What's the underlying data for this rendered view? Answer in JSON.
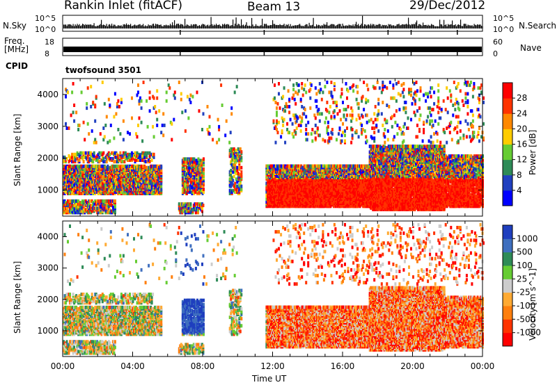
{
  "header": {
    "station": "Rankin Inlet (fitACF)",
    "beam": "Beam 13",
    "date": "29/Dec/2012"
  },
  "top_panel": {
    "nsky_label": "N.Sky",
    "nsearch_label": "N.Search",
    "left_ticks": [
      "10^5",
      "10^0"
    ],
    "right_ticks": [
      "10^5",
      "10^0"
    ]
  },
  "freq_panel": {
    "freq_label": "Freq.",
    "freq_unit": "[MHz]",
    "nave_label": "Nave",
    "left_ticks": [
      "18",
      "8"
    ],
    "right_ticks": [
      "60",
      "0"
    ]
  },
  "cpid": {
    "label": "CPID",
    "value": "twofsound 3501"
  },
  "chart_data": [
    {
      "type": "heatmap",
      "name": "power",
      "xlabel": "Time UT",
      "ylabel": "Slant Range [km]",
      "y_ticks": [
        1000,
        2000,
        3000,
        4000
      ],
      "y_range": [
        180,
        4500
      ],
      "x_tick_labels": [
        "00:00",
        "04:00",
        "08:00",
        "12:00",
        "16:00",
        "20:00",
        "00:00"
      ],
      "x_range_hours": [
        0,
        24
      ],
      "colorbar": {
        "label": "Power [dB]",
        "ticks": [
          "4",
          "8",
          "12",
          "16",
          "20",
          "24",
          "28"
        ],
        "colors": [
          "#0000ff",
          "#2040c0",
          "#2e8b57",
          "#66cc33",
          "#ffcc00",
          "#ff8800",
          "#ff3300",
          "#ff0000"
        ]
      }
    },
    {
      "type": "heatmap",
      "name": "velocity",
      "xlabel": "Time UT",
      "ylabel": "Slant Range [km]",
      "y_ticks": [
        1000,
        2000,
        3000,
        4000
      ],
      "y_range": [
        180,
        4500
      ],
      "x_tick_labels": [
        "00:00",
        "04:00",
        "08:00",
        "12:00",
        "16:00",
        "20:00",
        "00:00"
      ],
      "x_range_hours": [
        0,
        24
      ],
      "colorbar": {
        "label": "Velocity [m s^-1]",
        "ticks": [
          "1000",
          "500",
          "100",
          "25",
          "-25",
          "-100",
          "-500",
          "-1000"
        ],
        "colors": [
          "#1f3fbf",
          "#3f6fbf",
          "#2e8b57",
          "#66cc33",
          "#cccccc",
          "#ffaa33",
          "#ff7f0e",
          "#ff3300",
          "#ff0000"
        ]
      }
    }
  ],
  "x_axis_label": "Time UT"
}
